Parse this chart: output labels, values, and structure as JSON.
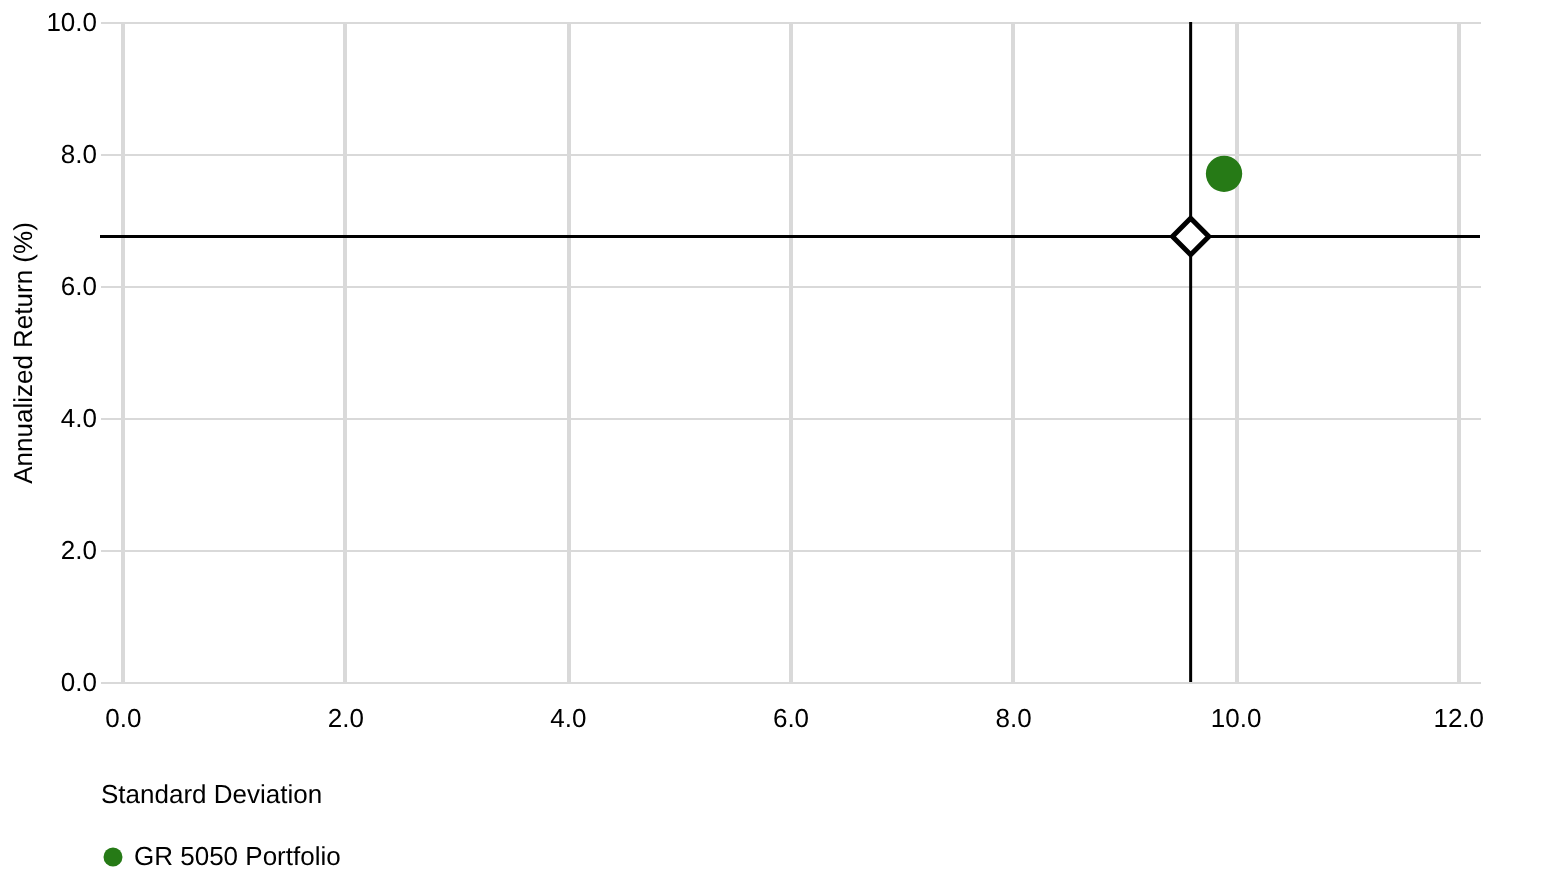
{
  "chart_data": {
    "type": "scatter",
    "xlabel": "Standard Deviation",
    "ylabel": "Annualized Return (%)",
    "xlim": [
      -0.2,
      12.2
    ],
    "xticks": [
      {
        "value": 0,
        "label": "0.0"
      },
      {
        "value": 2,
        "label": "2.0"
      },
      {
        "value": 4,
        "label": "4.0"
      },
      {
        "value": 6,
        "label": "6.0"
      },
      {
        "value": 8,
        "label": "8.0"
      },
      {
        "value": 10,
        "label": "10.0"
      },
      {
        "value": 12,
        "label": "12.0"
      }
    ],
    "ylim": [
      0,
      10
    ],
    "yticks": [
      {
        "value": 0,
        "label": "0.0"
      },
      {
        "value": 2,
        "label": "2.0"
      },
      {
        "value": 4,
        "label": "4.0"
      },
      {
        "value": 6,
        "label": "6.0"
      },
      {
        "value": 8,
        "label": "8.0"
      },
      {
        "value": 10,
        "label": "10.0"
      }
    ],
    "grid": true,
    "legend": "bottom",
    "series": [
      {
        "name": "GR 5050 Portfolio",
        "color": "#267a16",
        "marker": "circle",
        "x": [
          9.9
        ],
        "values": [
          7.7
        ]
      },
      {
        "color": "#000000",
        "marker": "diamond",
        "x": [
          9.6
        ],
        "values": [
          6.75
        ]
      }
    ],
    "ref_lines": [
      {
        "axis": "x",
        "value": 9.6,
        "color": "#000000"
      },
      {
        "axis": "y",
        "value": 6.75,
        "color": "#000000"
      }
    ]
  }
}
